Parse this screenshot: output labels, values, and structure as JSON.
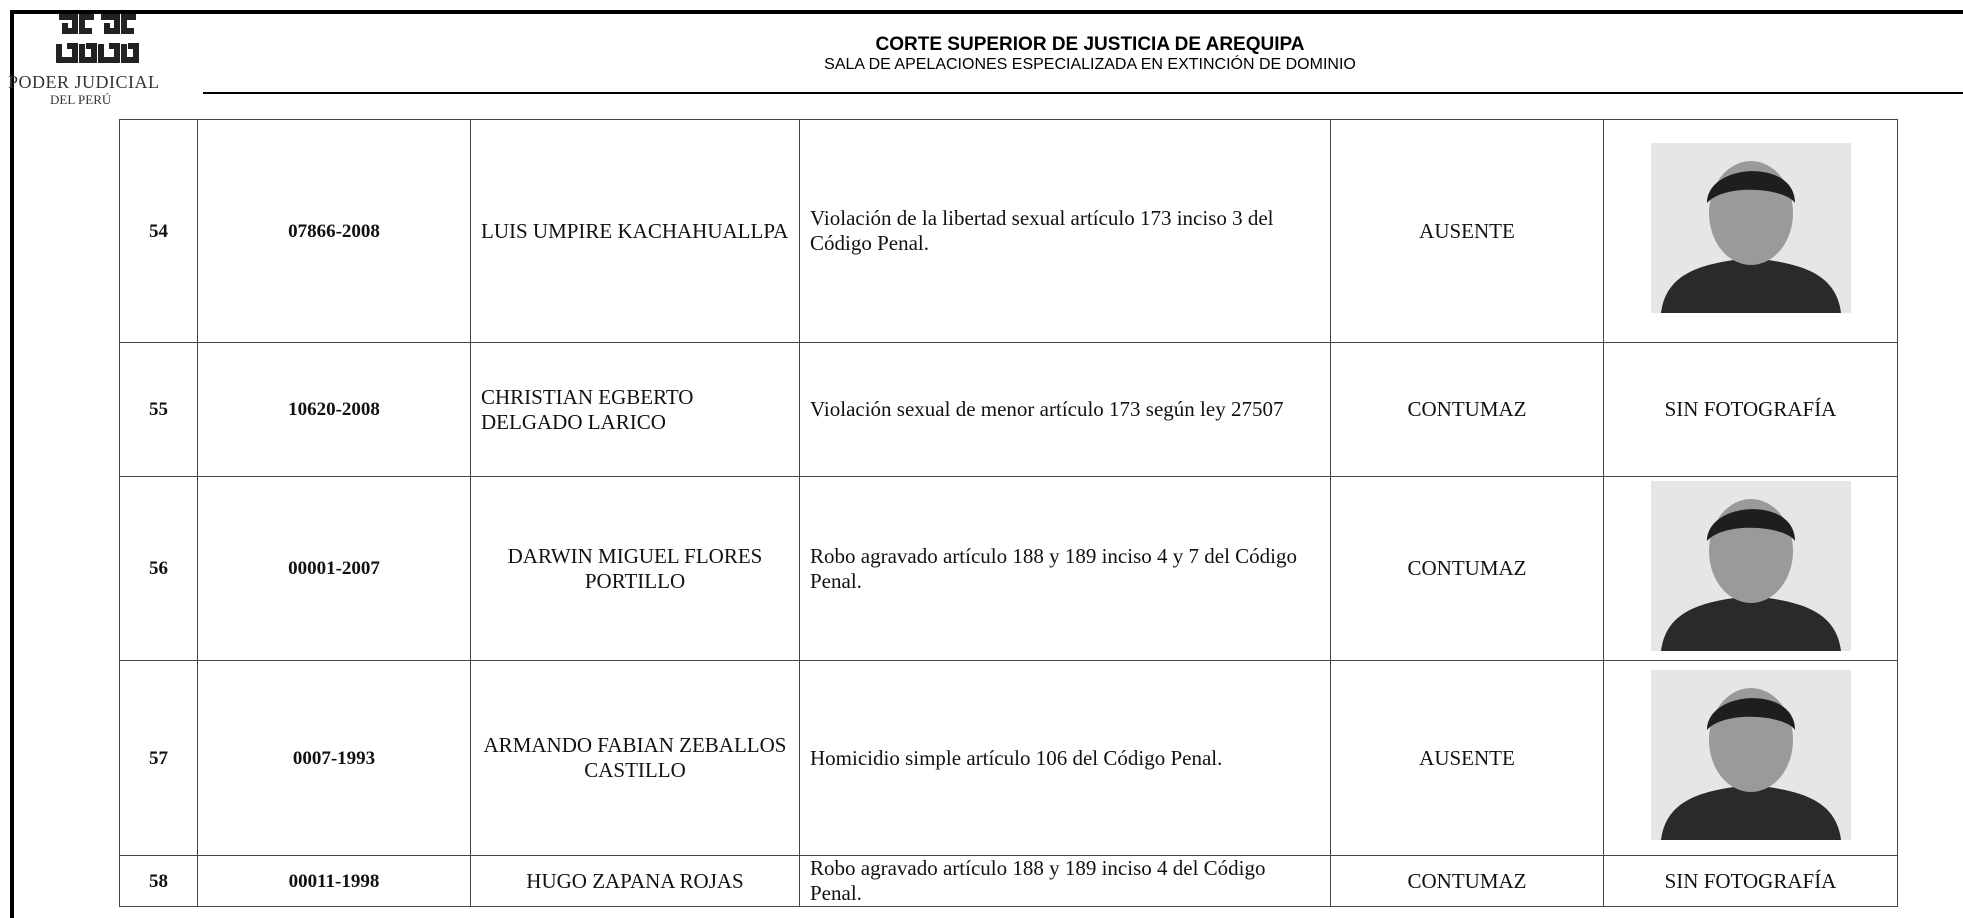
{
  "header": {
    "logo_line1": "PODER JUDICIAL",
    "logo_line2": "DEL PERÚ",
    "title": "CORTE SUPERIOR DE JUSTICIA DE AREQUIPA",
    "subtitle": "SALA DE APELACIONES ESPECIALIZADA EN EXTINCIÓN DE DOMINIO"
  },
  "table": {
    "rows": [
      {
        "no": "54",
        "case": "07866-2008",
        "name": "LUIS UMPIRE KACHAHUALLPA",
        "crime": "Violación de la libertad sexual artículo 173 inciso 3 del Código Penal.",
        "status": "AUSENTE"
      },
      {
        "no": "55",
        "case": "10620-2008",
        "name": "CHRISTIAN EGBERTO DELGADO LARICO",
        "crime": "Violación sexual de menor artículo 173 según ley 27507",
        "status": "CONTUMAZ",
        "photo": "SIN FOTOGRAFÍA"
      },
      {
        "no": "56",
        "case": "00001-2007",
        "name": "DARWIN MIGUEL FLORES PORTILLO",
        "crime": "Robo agravado artículo 188 y 189 inciso 4 y 7 del Código Penal.",
        "status": "CONTUMAZ"
      },
      {
        "no": "57",
        "case": "0007-1993",
        "name": "ARMANDO FABIAN ZEBALLOS CASTILLO",
        "crime": "Homicidio simple artículo 106 del Código Penal.",
        "status": "AUSENTE"
      },
      {
        "no": "58",
        "case": "00011-1998",
        "name": "HUGO ZAPANA ROJAS",
        "crime": "Robo agravado artículo 188 y 189 inciso 4 del Código Penal.",
        "status": "CONTUMAZ",
        "photo": "SIN FOTOGRAFÍA"
      }
    ]
  }
}
